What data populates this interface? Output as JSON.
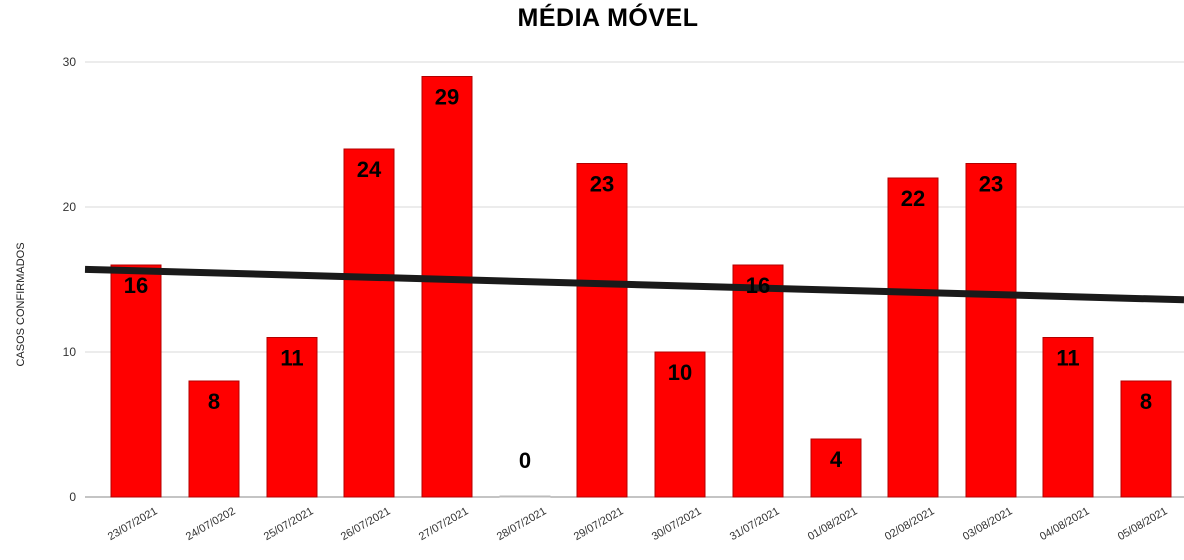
{
  "chart_data": {
    "type": "bar",
    "title": "MÉDIA MÓVEL",
    "xlabel": "",
    "ylabel": "CASOS CONFIRMADOS",
    "categories": [
      "23/07/2021",
      "24/07/0202",
      "25/07/2021",
      "26/07/2021",
      "27/07/2021",
      "28/07/2021",
      "29/07/2021",
      "30/07/2021",
      "31/07/2021",
      "01/08/2021",
      "02/08/2021",
      "03/08/2021",
      "04/08/2021",
      "05/08/2021"
    ],
    "values": [
      16,
      8,
      11,
      24,
      29,
      0,
      23,
      10,
      16,
      4,
      22,
      23,
      11,
      8
    ],
    "data_labels": [
      "16",
      "8",
      "11",
      "24",
      "29",
      "0",
      "23",
      "10",
      "16",
      "4",
      "22",
      "23",
      "11",
      "8"
    ],
    "ylim": [
      0,
      30
    ],
    "yticks": [
      0,
      10,
      20,
      30
    ],
    "grid": true,
    "legend": "none",
    "trendline": {
      "type": "linear",
      "start_value": 15.7,
      "end_value": 13.6
    },
    "colors": {
      "bar": "#ff0000",
      "bar_edge": "#b30000",
      "trendline": "#1a1a1a",
      "grid": "#d9d9d9"
    }
  }
}
